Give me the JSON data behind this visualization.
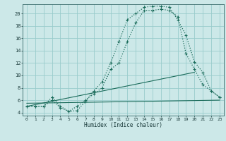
{
  "xlabel": "Humidex (Indice chaleur)",
  "bg_color": "#cce8e8",
  "grid_color": "#99cccc",
  "line_color": "#1a6b5a",
  "xlim": [
    -0.5,
    23.5
  ],
  "ylim": [
    3.5,
    21.5
  ],
  "xticks": [
    0,
    1,
    2,
    3,
    4,
    5,
    6,
    7,
    8,
    9,
    10,
    11,
    12,
    13,
    14,
    15,
    16,
    17,
    18,
    19,
    20,
    21,
    22,
    23
  ],
  "yticks": [
    4,
    6,
    8,
    10,
    12,
    14,
    16,
    18,
    20
  ],
  "curve1_x": [
    0,
    1,
    2,
    3,
    4,
    5,
    6,
    7,
    8,
    9,
    10,
    11,
    12,
    13,
    14,
    15,
    16,
    17,
    18,
    19,
    20,
    21,
    22,
    23
  ],
  "curve1_y": [
    5.0,
    5.0,
    5.0,
    6.5,
    5.0,
    4.2,
    4.3,
    5.8,
    7.5,
    9.0,
    12.0,
    15.5,
    19.0,
    20.0,
    21.0,
    21.2,
    21.2,
    21.0,
    19.0,
    16.5,
    12.2,
    10.5,
    7.5,
    6.5
  ],
  "curve2_x": [
    0,
    1,
    2,
    3,
    4,
    5,
    6,
    7,
    8,
    9,
    10,
    11,
    12,
    13,
    14,
    15,
    16,
    17,
    18,
    19,
    20,
    21,
    22,
    23
  ],
  "curve2_y": [
    5.0,
    5.0,
    5.0,
    6.0,
    4.8,
    4.2,
    5.0,
    6.0,
    7.0,
    8.0,
    11.0,
    12.0,
    15.5,
    18.5,
    20.5,
    20.5,
    20.7,
    20.5,
    19.5,
    13.5,
    11.0,
    8.5,
    7.5,
    6.5
  ],
  "flat_line_x": [
    0,
    23
  ],
  "flat_line_y": [
    5.5,
    6.0
  ],
  "diag_line_x": [
    0,
    20
  ],
  "diag_line_y": [
    5.0,
    10.5
  ]
}
